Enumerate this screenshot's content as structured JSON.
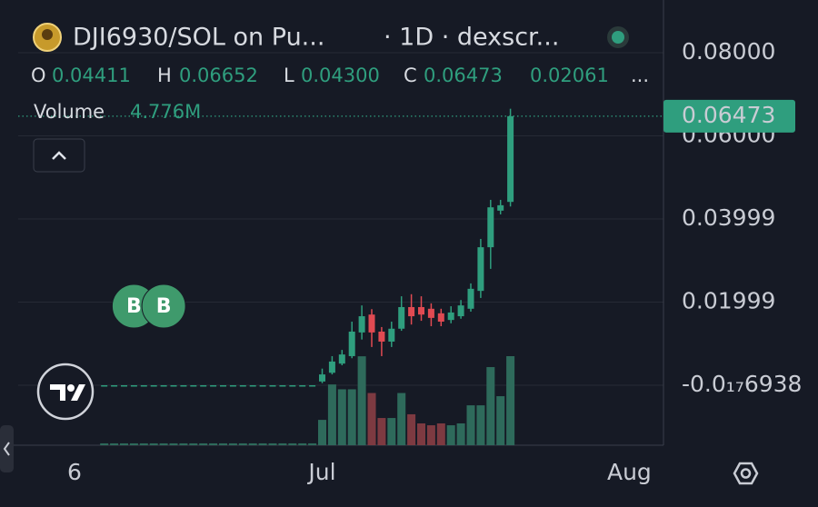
{
  "chart_data": {
    "type": "candlestick",
    "title": "DJI6930/SOL on Pu...",
    "subtitle": "· 1D · dexscr...",
    "ohlc_legend": [
      {
        "key": "O",
        "value": "0.04411"
      },
      {
        "key": "H",
        "value": "0.06652"
      },
      {
        "key": "L",
        "value": "0.04300"
      },
      {
        "key": "C",
        "value": "0.06473"
      }
    ],
    "change": "0.02061",
    "more": "...",
    "volume_label": "Volume",
    "volume_value": "4.776M",
    "price_line": {
      "value": 0.06473,
      "label": "0.06473"
    },
    "markers": [
      {
        "index": 6,
        "label": "B"
      },
      {
        "index": 9,
        "label": "B"
      }
    ],
    "up_color": "#2f9e7e",
    "down_color": "#e04a52",
    "up_volume_color": "#2e6a5b",
    "down_volume_color": "#7d3a41",
    "grid": true,
    "ylim": [
      -0.01443,
      0.09268
    ],
    "yticks": [
      {
        "value": 0.08,
        "label": "0.08000"
      },
      {
        "value": 0.06,
        "label": "0.06000"
      },
      0.03999,
      0.01999,
      {
        "value": -6.938e-19,
        "label": "-0.0₁₇6938"
      }
    ],
    "categories": [
      "6",
      null,
      null,
      null,
      null,
      null,
      null,
      null,
      null,
      null,
      null,
      null,
      null,
      null,
      null,
      null,
      null,
      null,
      null,
      null,
      null,
      null,
      null,
      null,
      null,
      "Jul",
      null,
      null,
      null,
      null,
      null,
      null,
      null,
      null,
      null,
      null,
      null,
      null,
      null,
      null,
      null,
      null,
      null,
      null,
      null,
      null,
      null,
      null,
      null,
      null,
      null,
      null,
      null,
      null,
      null,
      null,
      "Aug"
    ],
    "open": [
      null,
      null,
      null,
      0,
      0,
      0,
      0,
      0,
      0,
      0,
      0,
      0,
      0,
      0,
      0,
      0,
      0,
      0,
      0,
      0,
      0,
      0,
      0,
      0,
      0,
      0.0009,
      0.003,
      0.0052,
      0.007,
      0.0127,
      0.017,
      0.0129,
      0.0105,
      0.0136,
      0.0188,
      0.0188,
      0.0184,
      0.0173,
      0.0157,
      0.0166,
      0.0184,
      0.0227,
      0.0332,
      0.042,
      0.04411,
      null,
      null,
      null,
      null,
      null,
      null,
      null,
      null,
      null,
      null,
      null,
      null
    ],
    "high": [
      null,
      null,
      null,
      0,
      0,
      0,
      0,
      0,
      0,
      0,
      0,
      0,
      0,
      0,
      0,
      0,
      0,
      0,
      0,
      0,
      0,
      0,
      0,
      0,
      0,
      0.004,
      0.007,
      0.0085,
      0.0153,
      0.0192,
      0.0183,
      0.014,
      0.0153,
      0.0214,
      0.0219,
      0.0214,
      0.0197,
      0.0184,
      0.019,
      0.0205,
      0.0245,
      0.0352,
      0.0446,
      0.0446,
      0.06652,
      null,
      null,
      null,
      null,
      null,
      null,
      null,
      null,
      null,
      null,
      null,
      null
    ],
    "low": [
      null,
      null,
      null,
      0,
      0,
      0,
      0,
      0,
      0,
      0,
      0,
      0,
      0,
      0,
      0,
      0,
      0,
      0,
      0,
      0,
      0,
      0,
      0,
      0,
      0,
      0.0005,
      0.0026,
      0.0048,
      0.0065,
      0.011,
      0.0092,
      0.007,
      0.0092,
      0.0131,
      0.0146,
      0.0155,
      0.0142,
      0.0142,
      0.0149,
      0.016,
      0.0177,
      0.021,
      0.028,
      0.0411,
      0.043,
      null,
      null,
      null,
      null,
      null,
      null,
      null,
      null,
      null,
      null,
      null,
      null
    ],
    "close": [
      null,
      null,
      null,
      0,
      0,
      0,
      0,
      0,
      0,
      0,
      0,
      0,
      0,
      0,
      0,
      0,
      0,
      0,
      0,
      0,
      0,
      0,
      0,
      0,
      0,
      0.0026,
      0.0057,
      0.0074,
      0.0129,
      0.0166,
      0.0127,
      0.0105,
      0.0136,
      0.0188,
      0.0166,
      0.017,
      0.0162,
      0.0153,
      0.0175,
      0.0192,
      0.0232,
      0.0332,
      0.0428,
      0.0433,
      0.06473,
      null,
      null,
      null,
      null,
      null,
      null,
      null,
      null,
      null,
      null,
      null,
      null
    ],
    "volume": [
      null,
      null,
      null,
      100000,
      100000,
      100000,
      100000,
      100000,
      100000,
      100000,
      100000,
      100000,
      100000,
      100000,
      100000,
      100000,
      100000,
      100000,
      100000,
      100000,
      100000,
      100000,
      100000,
      100000,
      100000,
      1360000,
      3260000,
      3000000,
      3000000,
      4770000,
      2800000,
      1460000,
      1460000,
      2800000,
      1660000,
      1170000,
      1070000,
      1170000,
      1070000,
      1170000,
      2140000,
      2140000,
      4190000,
      2630000,
      4776000,
      null,
      null,
      null,
      null,
      null,
      null,
      null,
      null,
      null,
      null,
      null,
      null
    ]
  }
}
